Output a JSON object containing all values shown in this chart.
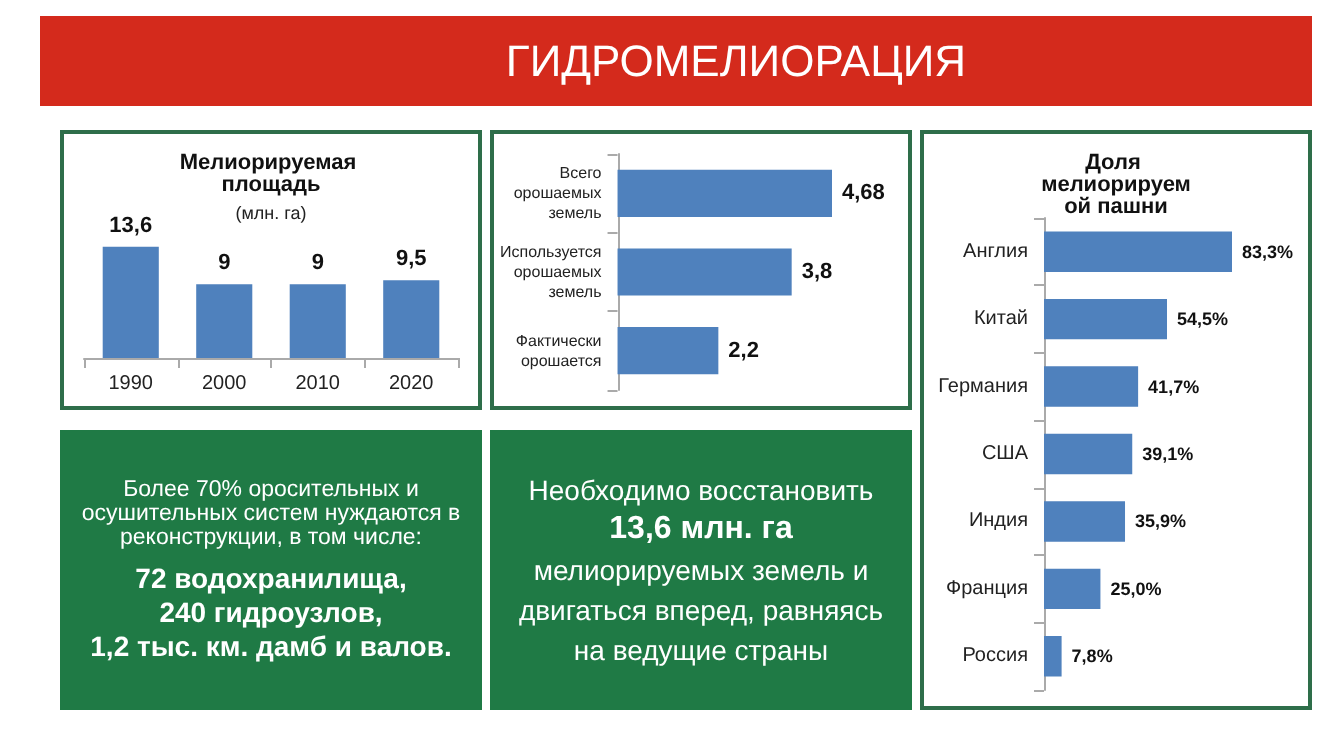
{
  "chart_data": [
    {
      "type": "other",
      "title": "ГИДРОМЕЛИОРАЦИЯ"
    },
    {
      "type": "bar",
      "title": "Мелиорируемая площадь",
      "subtitle": "(млн. га)",
      "categories": [
        "1990",
        "2000",
        "2010",
        "2020"
      ],
      "values": [
        13.6,
        9,
        9,
        9.5
      ],
      "value_labels": [
        "13,6",
        "9",
        "9",
        "9,5"
      ],
      "color": "#4f81bd",
      "tick_labels": "x"
    },
    {
      "type": "bar",
      "orientation": "horizontal",
      "categories": [
        "Всего орошаемых земель",
        "Используется орошаемых земель",
        "Фактически орошается"
      ],
      "values": [
        4.68,
        3.8,
        2.2
      ],
      "value_labels": [
        "4,68",
        "3,8",
        "2,2"
      ],
      "color": "#4f81bd",
      "tick_labels": "y"
    },
    {
      "type": "bar",
      "orientation": "horizontal",
      "title": "Доля мелиорируемой пашни",
      "categories": [
        "Англия",
        "Китай",
        "Германия",
        "США",
        "Индия",
        "Франция",
        "Россия"
      ],
      "values": [
        83.3,
        54.5,
        41.7,
        39.1,
        35.9,
        25.0,
        7.8
      ],
      "value_labels": [
        "83,3%",
        "54,5%",
        "41,7%",
        "39,1%",
        "35,9%",
        "25,0%",
        "7,8%"
      ],
      "color": "#4f81bd",
      "tick_labels": "y"
    },
    {
      "type": "other",
      "annotations": [
        "Более 70% оросительных и осушительных систем нуждаются в реконструкции, в том числе:",
        "72 водохранилища,",
        "240 гидроузлов,",
        "1,2 тыс. км. дамб и валов."
      ]
    },
    {
      "type": "other",
      "annotations": [
        "Необходимо восстановить",
        "13,6 млн. га",
        "мелиорируемых земель и двигаться вперед, равняясь на ведущие страны"
      ]
    }
  ]
}
